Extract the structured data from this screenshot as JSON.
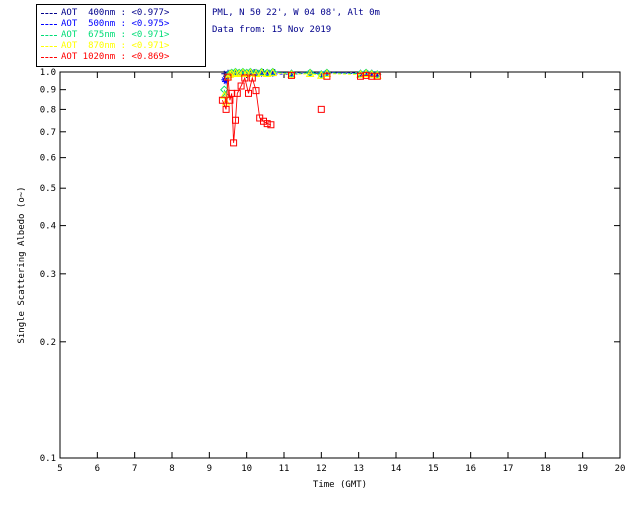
{
  "header": {
    "station_line": "PML, N 50 22', W 04 08', Alt 0m",
    "date_line": "Data from: 15 Nov 2019",
    "text_color": "#00008B"
  },
  "legend": {
    "entries": [
      {
        "label": "AOT  400nm : <0.977>",
        "color": "#00008B"
      },
      {
        "label": "AOT  500nm : <0.975>",
        "color": "#0000FF"
      },
      {
        "label": "AOT  675nm : <0.971>",
        "color": "#00DD77"
      },
      {
        "label": "AOT  870nm : <0.971>",
        "color": "#FFFF00"
      },
      {
        "label": "AOT 1020nm : <0.869>",
        "color": "#FF0000"
      }
    ]
  },
  "chart_data": {
    "type": "line",
    "title": "",
    "xlabel": "Time (GMT)",
    "ylabel": "Single Scattering Albedo (o~)",
    "xlim": [
      5,
      20
    ],
    "ylim": [
      0.1,
      1.0
    ],
    "yscale": "log",
    "grid": false,
    "legend_position": "top-left",
    "xticks": [
      5,
      6,
      7,
      8,
      9,
      10,
      11,
      12,
      13,
      14,
      15,
      16,
      17,
      18,
      19,
      20
    ],
    "yticks": [
      1.0,
      0.9,
      0.8,
      0.7,
      0.6,
      0.5,
      0.4,
      0.3,
      0.2,
      0.1
    ],
    "series": [
      {
        "name": "AOT 400nm",
        "mean": "<0.977>",
        "color": "#00008B",
        "marker": "plus",
        "line": "dashed",
        "segments": [
          [
            [
              9.4,
              0.99
            ],
            [
              9.45,
              0.975
            ],
            [
              9.5,
              0.995
            ],
            [
              9.55,
              0.985
            ],
            [
              9.6,
              1.0
            ],
            [
              9.65,
              0.99
            ],
            [
              9.7,
              0.995
            ],
            [
              9.8,
              1.0
            ],
            [
              9.9,
              0.995
            ],
            [
              10.0,
              1.0
            ],
            [
              10.1,
              0.995
            ],
            [
              10.2,
              1.0
            ],
            [
              10.3,
              0.995
            ],
            [
              10.45,
              1.0
            ],
            [
              10.6,
              0.995
            ],
            [
              10.75,
              1.0
            ],
            [
              11.2,
              0.995
            ],
            [
              11.7,
              1.0
            ],
            [
              12.0,
              0.99
            ],
            [
              12.15,
              1.0
            ],
            [
              13.05,
              0.995
            ],
            [
              13.2,
              1.0
            ],
            [
              13.35,
              0.995
            ],
            [
              13.5,
              0.99
            ]
          ]
        ]
      },
      {
        "name": "AOT 500nm",
        "mean": "<0.975>",
        "color": "#0000FF",
        "marker": "asterisk",
        "line": "dashed",
        "segments": [
          [
            [
              9.4,
              0.955
            ],
            [
              9.45,
              0.945
            ],
            [
              9.5,
              0.99
            ],
            [
              9.55,
              0.98
            ],
            [
              9.6,
              0.995
            ],
            [
              9.7,
              0.99
            ],
            [
              9.8,
              0.995
            ],
            [
              9.9,
              0.99
            ],
            [
              10.0,
              0.995
            ],
            [
              10.1,
              0.99
            ],
            [
              10.25,
              0.995
            ],
            [
              10.4,
              0.99
            ],
            [
              10.55,
              0.995
            ],
            [
              10.7,
              0.99
            ],
            [
              11.2,
              0.985
            ],
            [
              11.7,
              0.995
            ],
            [
              12.0,
              0.99
            ],
            [
              12.15,
              0.995
            ],
            [
              13.05,
              0.99
            ],
            [
              13.2,
              0.995
            ],
            [
              13.35,
              0.99
            ],
            [
              13.5,
              0.985
            ]
          ]
        ]
      },
      {
        "name": "AOT 675nm",
        "mean": "<0.971>",
        "color": "#00DD77",
        "marker": "diamond",
        "line": "dashed",
        "segments": [
          [
            [
              9.4,
              0.9
            ],
            [
              9.45,
              0.865
            ],
            [
              9.5,
              0.98
            ],
            [
              9.55,
              0.99
            ],
            [
              9.6,
              0.995
            ],
            [
              9.7,
              1.0
            ],
            [
              9.8,
              0.995
            ],
            [
              9.9,
              1.0
            ],
            [
              10.0,
              0.995
            ],
            [
              10.1,
              1.0
            ],
            [
              10.25,
              0.995
            ],
            [
              10.4,
              1.0
            ],
            [
              10.55,
              0.995
            ],
            [
              10.7,
              1.0
            ],
            [
              11.2,
              0.99
            ],
            [
              11.7,
              0.995
            ],
            [
              12.0,
              0.985
            ],
            [
              12.15,
              0.995
            ],
            [
              13.05,
              0.99
            ],
            [
              13.2,
              0.995
            ],
            [
              13.35,
              0.99
            ],
            [
              13.5,
              0.985
            ]
          ]
        ]
      },
      {
        "name": "AOT 870nm",
        "mean": "<0.971>",
        "color": "#FFFF00",
        "marker": "triangle",
        "line": "dashed",
        "segments": [
          [
            [
              9.4,
              0.87
            ],
            [
              9.45,
              0.835
            ],
            [
              9.5,
              0.97
            ],
            [
              9.55,
              0.985
            ],
            [
              9.6,
              0.99
            ],
            [
              9.7,
              0.995
            ],
            [
              9.8,
              0.99
            ],
            [
              9.9,
              0.995
            ],
            [
              10.0,
              0.99
            ],
            [
              10.1,
              0.995
            ],
            [
              10.25,
              0.99
            ],
            [
              10.4,
              0.995
            ],
            [
              10.55,
              0.99
            ],
            [
              10.7,
              0.995
            ],
            [
              11.2,
              0.985
            ],
            [
              11.7,
              0.99
            ],
            [
              12.0,
              0.98
            ],
            [
              12.15,
              0.99
            ],
            [
              13.05,
              0.985
            ],
            [
              13.2,
              0.99
            ],
            [
              13.35,
              0.985
            ],
            [
              13.5,
              0.98
            ]
          ]
        ]
      },
      {
        "name": "AOT 1020nm",
        "mean": "<0.869>",
        "color": "#FF0000",
        "marker": "square",
        "line": "solid",
        "segments": [
          [
            [
              9.35,
              0.845
            ],
            [
              9.45,
              0.8
            ],
            [
              9.5,
              0.97
            ],
            [
              9.55,
              0.845
            ],
            [
              9.6,
              0.88
            ],
            [
              9.65,
              0.655
            ],
            [
              9.7,
              0.75
            ],
            [
              9.75,
              0.88
            ],
            [
              9.85,
              0.92
            ],
            [
              9.95,
              0.965
            ],
            [
              10.05,
              0.88
            ],
            [
              10.15,
              0.965
            ],
            [
              10.25,
              0.895
            ],
            [
              10.35,
              0.76
            ],
            [
              10.45,
              0.745
            ],
            [
              10.55,
              0.735
            ],
            [
              10.65,
              0.73
            ]
          ],
          [
            [
              11.2,
              0.98
            ]
          ],
          [
            [
              12.0,
              0.8
            ]
          ],
          [
            [
              12.15,
              0.975
            ]
          ],
          [
            [
              13.05,
              0.975
            ],
            [
              13.2,
              0.98
            ],
            [
              13.35,
              0.975
            ],
            [
              13.5,
              0.975
            ]
          ]
        ]
      }
    ]
  }
}
